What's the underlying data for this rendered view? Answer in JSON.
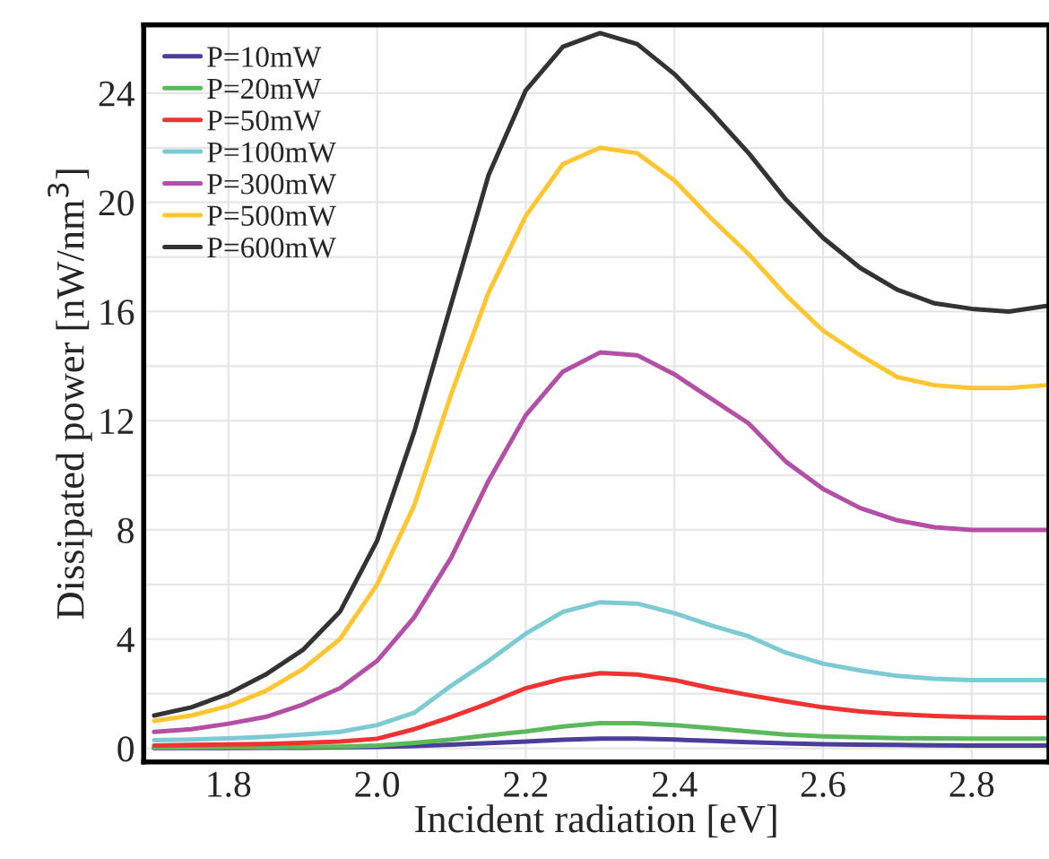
{
  "chart_data": {
    "type": "line",
    "xlabel": "Incident radiation [eV]",
    "ylabel": "Dissipated power [nW/nm$^{3}$]",
    "x": [
      1.7,
      1.75,
      1.8,
      1.85,
      1.9,
      1.95,
      2.0,
      2.05,
      2.1,
      2.15,
      2.2,
      2.25,
      2.3,
      2.35,
      2.4,
      2.45,
      2.5,
      2.55,
      2.6,
      2.65,
      2.7,
      2.75,
      2.8,
      2.85,
      2.9
    ],
    "series": [
      {
        "name": "P=10mW",
        "color": "#4b3d9a",
        "values": [
          0.01,
          0.01,
          0.01,
          0.02,
          0.02,
          0.03,
          0.05,
          0.08,
          0.13,
          0.19,
          0.25,
          0.31,
          0.35,
          0.35,
          0.32,
          0.27,
          0.22,
          0.18,
          0.15,
          0.13,
          0.12,
          0.11,
          0.1,
          0.1,
          0.1
        ]
      },
      {
        "name": "P=20mW",
        "color": "#5cb85c",
        "values": [
          0.03,
          0.03,
          0.04,
          0.04,
          0.05,
          0.06,
          0.1,
          0.2,
          0.32,
          0.48,
          0.62,
          0.8,
          0.92,
          0.92,
          0.85,
          0.74,
          0.62,
          0.5,
          0.44,
          0.4,
          0.37,
          0.36,
          0.35,
          0.35,
          0.35
        ]
      },
      {
        "name": "P=50mW",
        "color": "#ee3333",
        "values": [
          0.1,
          0.12,
          0.14,
          0.16,
          0.2,
          0.25,
          0.35,
          0.7,
          1.15,
          1.65,
          2.2,
          2.55,
          2.75,
          2.7,
          2.5,
          2.2,
          1.95,
          1.72,
          1.5,
          1.35,
          1.25,
          1.18,
          1.14,
          1.12,
          1.12
        ]
      },
      {
        "name": "P=100mW",
        "color": "#7ccbd3",
        "values": [
          0.3,
          0.32,
          0.36,
          0.42,
          0.5,
          0.6,
          0.85,
          1.3,
          2.3,
          3.2,
          4.2,
          5.0,
          5.35,
          5.3,
          4.95,
          4.5,
          4.1,
          3.5,
          3.1,
          2.85,
          2.65,
          2.55,
          2.5,
          2.5,
          2.5
        ]
      },
      {
        "name": "P=300mW",
        "color": "#b44fa6",
        "values": [
          0.6,
          0.7,
          0.9,
          1.15,
          1.6,
          2.2,
          3.2,
          4.8,
          7.0,
          9.8,
          12.2,
          13.8,
          14.5,
          14.4,
          13.7,
          12.8,
          11.9,
          10.5,
          9.5,
          8.8,
          8.35,
          8.1,
          8.0,
          8.0,
          8.0
        ]
      },
      {
        "name": "P=500mW",
        "color": "#ffc631",
        "values": [
          1.0,
          1.2,
          1.55,
          2.1,
          2.9,
          4.0,
          6.0,
          8.9,
          13.0,
          16.7,
          19.5,
          21.4,
          22.0,
          21.8,
          20.8,
          19.4,
          18.1,
          16.6,
          15.3,
          14.4,
          13.6,
          13.3,
          13.2,
          13.2,
          13.3
        ]
      },
      {
        "name": "P=600mW",
        "color": "#333333",
        "values": [
          1.2,
          1.5,
          2.0,
          2.7,
          3.6,
          5.0,
          7.6,
          11.6,
          16.3,
          21.0,
          24.1,
          25.7,
          26.2,
          25.8,
          24.7,
          23.3,
          21.8,
          20.1,
          18.7,
          17.6,
          16.8,
          16.3,
          16.1,
          16.0,
          16.2
        ]
      }
    ],
    "xlim": [
      1.686,
      2.904
    ],
    "xticks": [
      1.8,
      {
        "value": 2.0,
        "label": "2.0"
      },
      2.2,
      2.4,
      2.6,
      2.8
    ],
    "ylim": [
      -0.5,
      26.5
    ],
    "yticks": [
      0,
      {
        "value": 2,
        "label": null
      },
      4,
      {
        "value": 6,
        "label": null
      },
      8,
      {
        "value": 10,
        "label": null
      },
      12,
      {
        "value": 14,
        "label": null
      },
      16,
      {
        "value": 18,
        "label": null
      },
      20,
      {
        "value": 22,
        "label": null
      },
      24
    ],
    "grid": true,
    "legend": "top left",
    "marker": "none",
    "line_style": "solid"
  }
}
